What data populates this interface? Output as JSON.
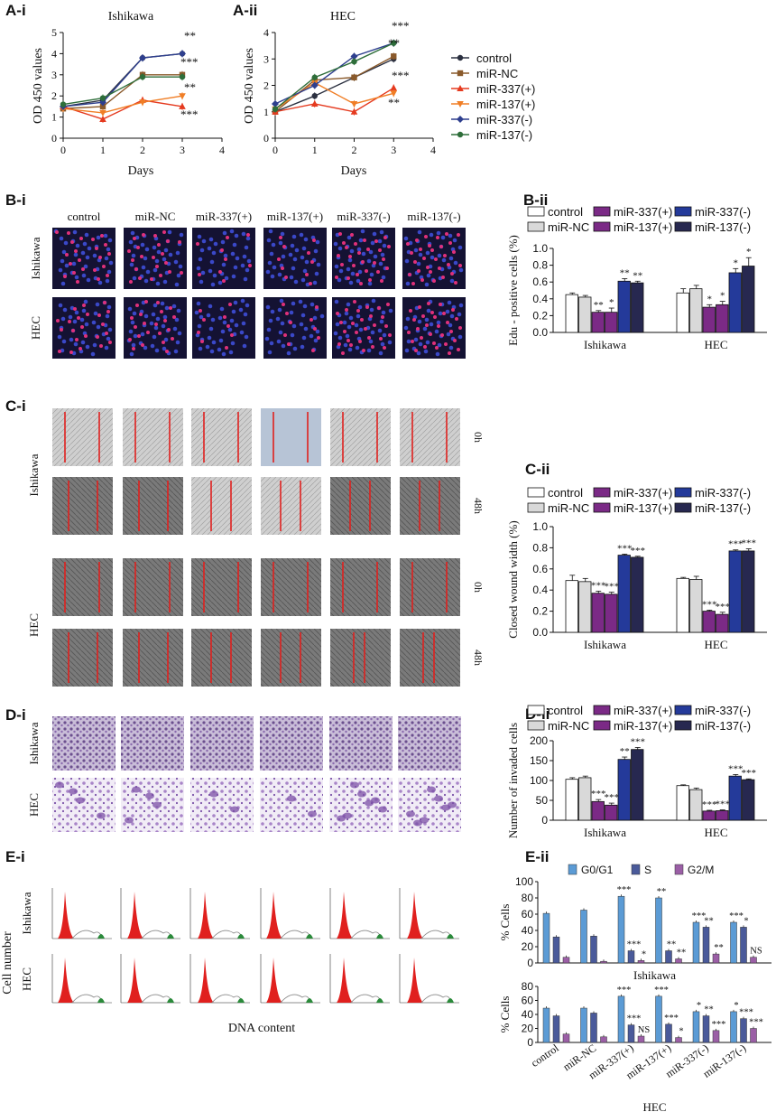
{
  "panels": {
    "a_i": "A-i",
    "a_ii": "A-ii",
    "b_i": "B-i",
    "b_ii": "B-ii",
    "c_i": "C-i",
    "c_ii": "C-ii",
    "d_i": "D-i",
    "d_ii": "D-ii",
    "e_i": "E-i",
    "e_ii": "E-ii"
  },
  "colors": {
    "control": "#2b3040",
    "miR-NC": "#8a5a2b",
    "miR-337(+)": "#e53a1f",
    "miR-137(+)": "#f07e26",
    "miR-337(-)": "#2e3f8e",
    "miR-137(-)": "#2e6e3a",
    "bar_control": "#ffffff",
    "bar_NC": "#d9d9d9",
    "bar_337p": "#7b2a86",
    "bar_137p": "#7b2a86",
    "bar_337m": "#243a9a",
    "bar_137m": "#272850",
    "g0g1": "#5b9bd5",
    "s": "#4a5a9a",
    "g2m": "#9b5fa6"
  },
  "microscopy": {
    "b_cols": [
      "control",
      "miR-NC",
      "miR-337(+)",
      "miR-137(+)",
      "miR-337(-)",
      "miR-137(-)"
    ],
    "b_rows": [
      "Ishikawa",
      "HEC"
    ],
    "c_rows": [
      "Ishikawa",
      "HEC"
    ],
    "c_times": [
      "0h",
      "48h",
      "0h",
      "48h"
    ],
    "d_rows": [
      "Ishikawa",
      "HEC"
    ],
    "e_rows": [
      "Ishikawa",
      "HEC"
    ],
    "e_ylabel": "Cell number",
    "e_xlabel": "DNA content"
  },
  "chart_data": [
    {
      "id": "A-i",
      "type": "line",
      "title": "Ishikawa",
      "xlabel": "Days",
      "ylabel": "OD 450 values",
      "xlim": [
        0,
        4
      ],
      "ylim": [
        0,
        5
      ],
      "x": [
        0,
        1,
        2,
        3
      ],
      "series": [
        {
          "name": "control",
          "values": [
            1.5,
            1.8,
            3.8,
            4.0
          ]
        },
        {
          "name": "miR-NC",
          "values": [
            1.4,
            1.5,
            3.0,
            3.0
          ]
        },
        {
          "name": "miR-337(+)",
          "values": [
            1.5,
            0.9,
            1.8,
            1.5
          ]
        },
        {
          "name": "miR-137(+)",
          "values": [
            1.4,
            1.2,
            1.7,
            2.0
          ]
        },
        {
          "name": "miR-337(-)",
          "values": [
            1.5,
            1.7,
            3.8,
            4.0
          ]
        },
        {
          "name": "miR-137(-)",
          "values": [
            1.6,
            1.9,
            2.9,
            2.9
          ]
        }
      ],
      "annotations": [
        "**",
        "***",
        "**",
        "***"
      ]
    },
    {
      "id": "A-ii",
      "type": "line",
      "title": "HEC",
      "xlabel": "Days",
      "ylabel": "OD 450 values",
      "xlim": [
        0,
        4
      ],
      "ylim": [
        0,
        4
      ],
      "x": [
        0,
        1,
        2,
        3
      ],
      "series": [
        {
          "name": "control",
          "values": [
            1.0,
            1.6,
            2.3,
            3.0
          ]
        },
        {
          "name": "miR-NC",
          "values": [
            1.0,
            2.2,
            2.3,
            3.1
          ]
        },
        {
          "name": "miR-337(+)",
          "values": [
            1.0,
            1.3,
            1.0,
            1.9
          ]
        },
        {
          "name": "miR-137(+)",
          "values": [
            1.1,
            2.1,
            1.3,
            1.7
          ]
        },
        {
          "name": "miR-337(-)",
          "values": [
            1.3,
            2.0,
            3.1,
            3.6
          ]
        },
        {
          "name": "miR-137(-)",
          "values": [
            1.1,
            2.3,
            2.9,
            3.6
          ]
        }
      ],
      "annotations": [
        "***",
        "**",
        "***",
        "**"
      ]
    },
    {
      "id": "B-ii",
      "type": "bar",
      "ylabel": "Edu - positive cells (%)",
      "ylim": [
        0,
        1.0
      ],
      "yticks": [
        "0.0",
        "0.2",
        "0.4",
        "0.6",
        "0.8",
        "1.0"
      ],
      "categories": [
        "Ishikawa",
        "HEC"
      ],
      "series": [
        {
          "name": "control",
          "values": [
            0.45,
            0.47
          ]
        },
        {
          "name": "miR-NC",
          "values": [
            0.42,
            0.52
          ]
        },
        {
          "name": "miR-337(+)",
          "values": [
            0.24,
            0.3
          ]
        },
        {
          "name": "miR-137(+)",
          "values": [
            0.24,
            0.33
          ]
        },
        {
          "name": "miR-337(-)",
          "values": [
            0.61,
            0.71
          ]
        },
        {
          "name": "miR-137(-)",
          "values": [
            0.59,
            0.79
          ]
        }
      ],
      "errors": [
        [
          0.02,
          0.02,
          0.02,
          0.05,
          0.03,
          0.02
        ],
        [
          0.05,
          0.04,
          0.03,
          0.04,
          0.05,
          0.1
        ]
      ],
      "stars": [
        [
          "",
          "",
          "**",
          "*",
          "**",
          "**"
        ],
        [
          "",
          "",
          "*",
          "*",
          "*",
          "*"
        ]
      ]
    },
    {
      "id": "C-ii",
      "type": "bar",
      "ylabel": "Closed wound width (%)",
      "ylim": [
        0,
        1.0
      ],
      "yticks": [
        "0.0",
        "0.2",
        "0.4",
        "0.6",
        "0.8",
        "1.0"
      ],
      "categories": [
        "Ishikawa",
        "HEC"
      ],
      "series": [
        {
          "name": "control",
          "values": [
            0.49,
            0.51
          ]
        },
        {
          "name": "miR-NC",
          "values": [
            0.48,
            0.5
          ]
        },
        {
          "name": "miR-337(+)",
          "values": [
            0.37,
            0.2
          ]
        },
        {
          "name": "miR-137(+)",
          "values": [
            0.36,
            0.17
          ]
        },
        {
          "name": "miR-337(-)",
          "values": [
            0.73,
            0.77
          ]
        },
        {
          "name": "miR-137(-)",
          "values": [
            0.71,
            0.77
          ]
        }
      ],
      "errors": [
        [
          0.05,
          0.03,
          0.02,
          0.02,
          0.01,
          0.01
        ],
        [
          0.01,
          0.03,
          0.01,
          0.02,
          0.01,
          0.02
        ]
      ],
      "stars": [
        [
          "",
          "",
          "***",
          "***",
          "***",
          "***"
        ],
        [
          "",
          "",
          "***",
          "***",
          "***",
          "***"
        ]
      ]
    },
    {
      "id": "D-ii",
      "type": "bar",
      "ylabel": "Number of invaded cells",
      "ylim": [
        0,
        200
      ],
      "yticks": [
        "0",
        "50",
        "100",
        "150",
        "200"
      ],
      "categories": [
        "Ishikawa",
        "HEC"
      ],
      "series": [
        {
          "name": "control",
          "values": [
            103,
            87
          ]
        },
        {
          "name": "miR-NC",
          "values": [
            107,
            77
          ]
        },
        {
          "name": "miR-337(+)",
          "values": [
            47,
            23
          ]
        },
        {
          "name": "miR-137(+)",
          "values": [
            38,
            24
          ]
        },
        {
          "name": "miR-337(-)",
          "values": [
            153,
            111
          ]
        },
        {
          "name": "miR-137(-)",
          "values": [
            178,
            102
          ]
        }
      ],
      "errors": [
        [
          4,
          4,
          5,
          5,
          6,
          5
        ],
        [
          2,
          4,
          2,
          2,
          4,
          2
        ]
      ],
      "stars": [
        [
          "",
          "",
          "***",
          "***",
          "**",
          "***"
        ],
        [
          "",
          "",
          "***",
          "***",
          "***",
          "***"
        ]
      ]
    },
    {
      "id": "E-ii-Ishikawa",
      "type": "bar",
      "title": "Ishikawa",
      "ylabel": "% Cells",
      "ylim": [
        0,
        100
      ],
      "yticks": [
        "0",
        "20",
        "40",
        "60",
        "80",
        "100"
      ],
      "categories": [
        "control",
        "miR-NC",
        "miR-337(+)",
        "miR-137(+)",
        "miR-337(-)",
        "miR-137(-)"
      ],
      "series": [
        {
          "name": "G0/G1",
          "values": [
            61,
            65,
            82,
            80,
            50,
            50
          ]
        },
        {
          "name": "S",
          "values": [
            32,
            33,
            15,
            15,
            44,
            44
          ]
        },
        {
          "name": "G2/M",
          "values": [
            7,
            2,
            3,
            5,
            11,
            7
          ]
        }
      ],
      "stars": [
        [
          "",
          "",
          "",
          ""
        ],
        [
          "",
          "",
          ""
        ],
        [
          "***",
          "***",
          "*"
        ],
        [
          "**",
          "**",
          "**"
        ],
        [
          "***",
          "**",
          "**"
        ],
        [
          "***",
          "*",
          "NS"
        ]
      ]
    },
    {
      "id": "E-ii-HEC",
      "type": "bar",
      "title": "HEC",
      "ylabel": "% Cells",
      "ylim": [
        0,
        80
      ],
      "yticks": [
        "0",
        "20",
        "40",
        "60",
        "80"
      ],
      "categories": [
        "control",
        "miR-NC",
        "miR-337(+)",
        "miR-137(+)",
        "miR-337(-)",
        "miR-137(-)"
      ],
      "series": [
        {
          "name": "G0/G1",
          "values": [
            49,
            49,
            66,
            66,
            44,
            44
          ]
        },
        {
          "name": "S",
          "values": [
            38,
            42,
            25,
            26,
            38,
            34
          ]
        },
        {
          "name": "G2/M",
          "values": [
            12,
            8,
            9,
            7,
            17,
            20
          ]
        }
      ],
      "stars": [
        [
          "",
          "",
          ""
        ],
        [
          "",
          "",
          ""
        ],
        [
          "***",
          "***",
          "NS"
        ],
        [
          "***",
          "***",
          "*"
        ],
        [
          "*",
          "**",
          "***"
        ],
        [
          "*",
          "***",
          "***"
        ]
      ]
    }
  ],
  "legend_labels": [
    "control",
    "miR-NC",
    "miR-337(+)",
    "miR-137(+)",
    "miR-337(-)",
    "miR-137(-)"
  ],
  "cycle_legend": [
    "G0/G1",
    "S",
    "G2/M"
  ]
}
